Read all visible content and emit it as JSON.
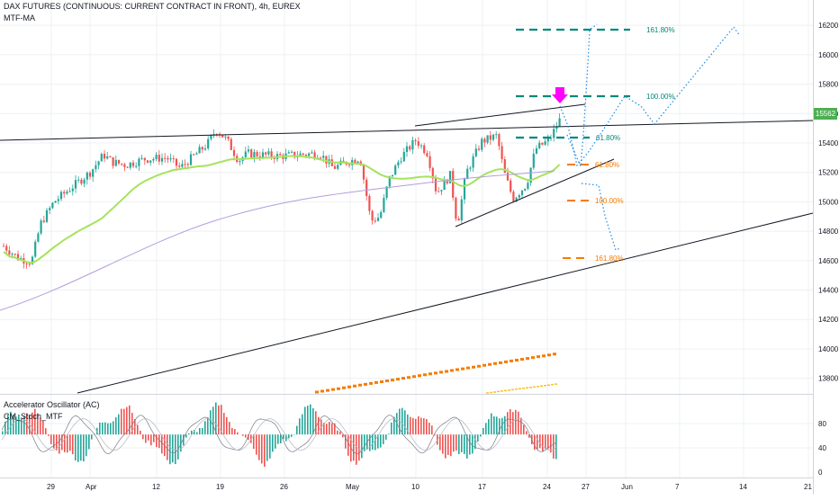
{
  "legend": {
    "symbol_line": "DAX FUTURES (CONTINUOUS: CURRENT CONTRACT IN FRONT), 4h, EUREX",
    "indicator_main": "MTF-MA",
    "indicator_osc1": "Accelerator Oscillator (AC)",
    "indicator_osc2": "CM_Stoch_MTF"
  },
  "last_price": "15562",
  "colors": {
    "bull": "#26a69a",
    "bear": "#ef5350",
    "magenta": "#ff00ff",
    "ma_green": "#a5e35c",
    "ma_purple": "#b39ddb",
    "fib_teal": "#00897b",
    "fib_orange": "#f57c00",
    "projection": "#1e88e5",
    "trendline": "#131722",
    "badge": "#4caf50"
  },
  "fib_levels": [
    {
      "label": "161.80%",
      "color": "teal"
    },
    {
      "label": "100.00%",
      "color": "teal"
    },
    {
      "label": "61.80%",
      "color": "teal"
    },
    {
      "label": "61.80%",
      "color": "orange"
    },
    {
      "label": "100.00%",
      "color": "orange"
    },
    {
      "label": "161.80%",
      "color": "orange"
    }
  ],
  "chart_data": [
    {
      "type": "candlestick",
      "title": "DAX FUTURES (CONTINUOUS: CURRENT CONTRACT IN FRONT), 4h, EUREX",
      "y_ticks": [
        "16200",
        "16000",
        "15800",
        "15600",
        "15400",
        "15200",
        "15000",
        "14800",
        "14600",
        "14400",
        "14200",
        "14000",
        "13800"
      ],
      "x_ticks": [
        "29",
        "Apr",
        "12",
        "19",
        "26",
        "May",
        "10",
        "17",
        "24",
        "27",
        "Jun",
        "7",
        "14",
        "21"
      ],
      "ylim": [
        13700,
        16250
      ],
      "last_price": 15562
    },
    {
      "type": "bar",
      "title": "Accelerator Oscillator (AC)",
      "y_ticks": [
        "80",
        "40",
        "0"
      ],
      "ylim": [
        0,
        100
      ]
    }
  ]
}
